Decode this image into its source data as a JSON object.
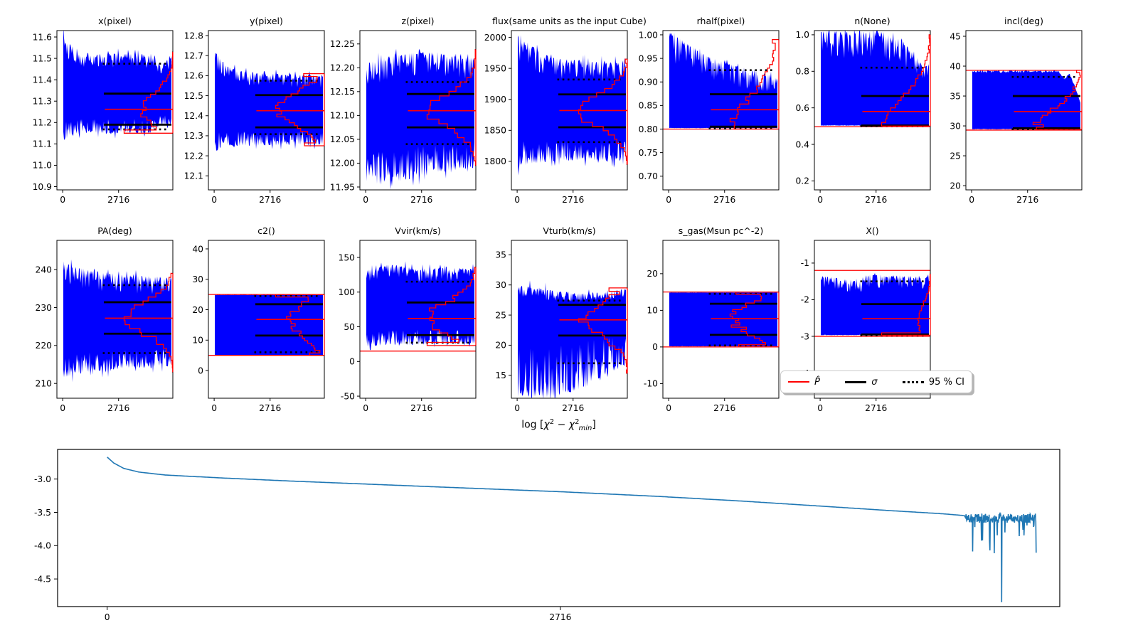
{
  "figure": {
    "bg": "#ffffff",
    "trace_color": "#0000ff",
    "hist_color": "#ff0000",
    "stat_color": "#000000",
    "curve_color": "#1f77b4",
    "axis_color": "#000000"
  },
  "legend": {
    "items": [
      {
        "style": "solid-red",
        "label": "P̂",
        "italic": true
      },
      {
        "style": "solid-black",
        "label": "σ",
        "italic": true
      },
      {
        "style": "dotted-black",
        "label": "95 % CI",
        "italic": false
      }
    ]
  },
  "chart_data": {
    "type": "line",
    "description": "MCMC parameter trace plots (blue chain envelope, red posterior histogram, red median and parameter-bound lines, black sigma lines, dotted 95% CI) plus chi-squared convergence curve",
    "trace_xticks": [
      0,
      2716
    ],
    "panels": [
      {
        "id": "x-pixel",
        "title": "x(pixel)",
        "row": 0,
        "col": 0,
        "ylim": [
          10.885,
          11.63
        ],
        "yticks": [
          10.9,
          11.0,
          11.1,
          11.2,
          11.3,
          11.4,
          11.5,
          11.6
        ],
        "ydec": 1,
        "median": 11.262,
        "sigma": [
          11.19,
          11.335
        ],
        "ci95": [
          11.168,
          11.475
        ],
        "bounds": [],
        "env": [
          [
            0,
            11.11,
            11.625
          ],
          [
            0.05,
            11.13,
            11.57
          ],
          [
            0.2,
            11.15,
            11.525
          ],
          [
            0.84,
            11.15,
            11.52
          ],
          [
            0.9,
            11.2,
            11.46
          ],
          [
            1,
            11.16,
            11.52
          ]
        ],
        "jag": [
          0.18,
          0.18
        ],
        "hist": {
          "dist": "normal",
          "mu": 11.26,
          "sd": 0.08,
          "clip": [
            11.15,
            11.53
          ]
        }
      },
      {
        "id": "y-pixel",
        "title": "y(pixel)",
        "row": 0,
        "col": 1,
        "ylim": [
          12.03,
          12.825
        ],
        "yticks": [
          12.1,
          12.2,
          12.3,
          12.4,
          12.5,
          12.6,
          12.7,
          12.8
        ],
        "ydec": 1,
        "median": 12.425,
        "sigma": [
          12.342,
          12.503
        ],
        "ci95": [
          12.308,
          12.575
        ],
        "bounds": [],
        "env": [
          [
            0,
            12.21,
            12.745
          ],
          [
            0.08,
            12.25,
            12.655
          ],
          [
            0.3,
            12.25,
            12.615
          ],
          [
            1,
            12.255,
            12.6
          ]
        ],
        "jag": [
          0.2,
          0.18
        ],
        "hist": {
          "dist": "normal",
          "mu": 12.43,
          "sd": 0.085,
          "clip": [
            12.25,
            12.61
          ]
        }
      },
      {
        "id": "z-pixel",
        "title": "z(pixel)",
        "row": 0,
        "col": 2,
        "ylim": [
          11.944,
          12.278
        ],
        "yticks": [
          11.95,
          12.0,
          12.05,
          12.1,
          12.15,
          12.2,
          12.25
        ],
        "ydec": 2,
        "median": 12.11,
        "sigma": [
          12.075,
          12.145
        ],
        "ci95": [
          12.04,
          12.17
        ],
        "bounds": [],
        "env": [
          [
            0,
            11.97,
            12.21
          ],
          [
            0.3,
            11.96,
            12.23
          ],
          [
            0.6,
            11.98,
            12.235
          ],
          [
            1,
            11.99,
            12.22
          ]
        ],
        "jag": [
          0.25,
          0.2
        ],
        "hist": {
          "dist": "normal",
          "mu": 12.11,
          "sd": 0.036,
          "clip": [
            11.95,
            12.24
          ]
        }
      },
      {
        "id": "flux",
        "title": "flux(same units as the input Cube)",
        "row": 0,
        "col": 3,
        "ylim": [
          1754,
          2011
        ],
        "yticks": [
          1800,
          1850,
          1900,
          1950,
          2000
        ],
        "ydec": 0,
        "median": 1882,
        "sigma": [
          1855,
          1908
        ],
        "ci95": [
          1831,
          1932
        ],
        "bounds": [],
        "env": [
          [
            0,
            1788,
            2004
          ],
          [
            0.1,
            1795,
            1990
          ],
          [
            0.3,
            1800,
            1968
          ],
          [
            0.6,
            1802,
            1962
          ],
          [
            1,
            1800,
            1958
          ]
        ],
        "jag": [
          0.2,
          0.2
        ],
        "hist": {
          "dist": "normal",
          "mu": 1882,
          "sd": 27,
          "clip": [
            1795,
            1965
          ]
        }
      },
      {
        "id": "rhalf-pixel",
        "title": "rhalf(pixel)",
        "row": 0,
        "col": 4,
        "ylim": [
          0.671,
          1.009
        ],
        "yticks": [
          0.7,
          0.75,
          0.8,
          0.85,
          0.9,
          0.95,
          1.0
        ],
        "ydec": 2,
        "median": 0.841,
        "sigma": [
          0.805,
          0.874
        ],
        "ci95": [
          0.801,
          0.925
        ],
        "bounds": [
          0.8
        ],
        "env": [
          [
            0,
            0.802,
            1.008
          ],
          [
            0.15,
            0.802,
            0.985
          ],
          [
            0.35,
            0.802,
            0.955
          ],
          [
            0.6,
            0.802,
            0.935
          ],
          [
            0.8,
            0.802,
            0.925
          ],
          [
            1,
            0.802,
            0.91
          ]
        ],
        "jag": [
          0.004,
          0.35
        ],
        "hist": {
          "dist": "halfnormal",
          "mu": 0.8,
          "sd": 0.075,
          "clip": [
            0.8,
            0.99
          ]
        }
      },
      {
        "id": "n-none",
        "title": "n(None)",
        "row": 0,
        "col": 5,
        "ylim": [
          0.151,
          1.023
        ],
        "yticks": [
          0.2,
          0.4,
          0.6,
          0.8,
          1.0
        ],
        "ydec": 1,
        "median": 0.58,
        "sigma": [
          0.503,
          0.665
        ],
        "ci95": [
          0.5,
          0.82
        ],
        "bounds": [
          0.497
        ],
        "env": [
          [
            0,
            0.503,
            1.02
          ],
          [
            0.5,
            0.503,
            1.02
          ],
          [
            0.62,
            0.503,
            1.0
          ],
          [
            0.75,
            0.503,
            0.97
          ],
          [
            0.88,
            0.503,
            0.88
          ],
          [
            1,
            0.503,
            0.82
          ]
        ],
        "jag": [
          0.004,
          0.3
        ],
        "hist": {
          "dist": "halfnormal",
          "mu": 0.5,
          "sd": 0.16,
          "clip": [
            0.5,
            1.0
          ]
        }
      },
      {
        "id": "incl-deg",
        "title": "incl(deg)",
        "row": 0,
        "col": 6,
        "ylim": [
          19.3,
          45.95
        ],
        "yticks": [
          20,
          25,
          30,
          35,
          40,
          45
        ],
        "ydec": 0,
        "median": 32.4,
        "sigma": [
          29.6,
          35.0
        ],
        "ci95": [
          29.45,
          38.2
        ],
        "bounds": [
          29.3,
          39.3
        ],
        "env": [
          [
            0,
            29.45,
            39.25
          ],
          [
            0.8,
            29.45,
            39.25
          ],
          [
            0.85,
            29.45,
            38.0
          ],
          [
            0.9,
            29.45,
            38.8
          ],
          [
            0.95,
            29.45,
            36.5
          ],
          [
            1,
            29.45,
            33.8
          ]
        ],
        "jag": [
          0.006,
          0.04
        ],
        "hist": {
          "dist": "halfnormal",
          "mu": 29.4,
          "sd": 3.6,
          "clip": [
            29.4,
            39.3
          ]
        }
      },
      {
        "id": "pa-deg",
        "title": "PA(deg)",
        "row": 1,
        "col": 0,
        "ylim": [
          206.1,
          247.7
        ],
        "yticks": [
          210,
          220,
          230,
          240
        ],
        "ydec": 0,
        "median": 227.2,
        "sigma": [
          223.1,
          231.4
        ],
        "ci95": [
          218.0,
          235.9
        ],
        "bounds": [],
        "env": [
          [
            0,
            211.5,
            241.5
          ],
          [
            0.25,
            213,
            240
          ],
          [
            0.6,
            214,
            238.5
          ],
          [
            1,
            214.5,
            238
          ]
        ],
        "jag": [
          0.2,
          0.2
        ],
        "hist": {
          "dist": "normal",
          "mu": 227.2,
          "sd": 4.2,
          "clip": [
            213,
            239
          ]
        }
      },
      {
        "id": "c2",
        "title": "c2()",
        "row": 1,
        "col": 1,
        "ylim": [
          -9.1,
          42.8
        ],
        "yticks": [
          0,
          10,
          20,
          30,
          40
        ],
        "ydec": 0,
        "median": 16.8,
        "sigma": [
          11.5,
          21.8
        ],
        "ci95": [
          6.0,
          24.5
        ],
        "bounds": [
          5,
          25
        ],
        "env": [
          [
            0,
            5.05,
            24.92
          ],
          [
            1,
            5.05,
            24.92
          ]
        ],
        "jag": [
          0.006,
          0.006
        ],
        "hist": {
          "dist": "normal",
          "mu": 16.5,
          "sd": 5.5,
          "clip": [
            5,
            25
          ]
        }
      },
      {
        "id": "vvir-kms",
        "title": "Vvir(km/s)",
        "row": 1,
        "col": 2,
        "ylim": [
          -53,
          174.6
        ],
        "yticks": [
          -50,
          0,
          50,
          100,
          150
        ],
        "ydec": 0,
        "median": 62,
        "sigma": [
          38,
          85
        ],
        "ci95": [
          27,
          115
        ],
        "bounds": [
          15
        ],
        "env": [
          [
            0,
            23,
            131
          ],
          [
            0.2,
            23,
            140
          ],
          [
            0.5,
            24,
            134
          ],
          [
            0.8,
            25,
            136
          ],
          [
            1,
            26,
            133
          ]
        ],
        "jag": [
          0.2,
          0.18
        ],
        "hist": {
          "dist": "normal",
          "mu": 62,
          "sd": 24,
          "clip": [
            23,
            136
          ]
        }
      },
      {
        "id": "vturb-kms",
        "title": "Vturb(km/s)",
        "row": 1,
        "col": 3,
        "ylim": [
          11.2,
          37.4
        ],
        "yticks": [
          15,
          20,
          25,
          30,
          35
        ],
        "ydec": 0,
        "median": 24.2,
        "sigma": [
          21.6,
          26.7
        ],
        "ci95": [
          17.0,
          27.4
        ],
        "bounds": [],
        "env": [
          [
            0,
            11.4,
            30
          ],
          [
            0.35,
            11.5,
            29
          ],
          [
            0.55,
            12.5,
            28.6
          ],
          [
            0.8,
            15,
            28.8
          ],
          [
            1,
            16.5,
            29.3
          ]
        ],
        "jag": [
          0.5,
          0.1
        ],
        "hist": {
          "dist": "normal",
          "mu": 24.2,
          "sd": 2.7,
          "clip": [
            11.5,
            29.5
          ]
        }
      },
      {
        "id": "s-gas",
        "title": "s_gas(Msun pc^-2)",
        "row": 1,
        "col": 4,
        "ylim": [
          -14,
          29.1
        ],
        "yticks": [
          -10,
          0,
          10,
          20
        ],
        "ydec": 0,
        "median": 7.7,
        "sigma": [
          3.3,
          11.8
        ],
        "ci95": [
          0.4,
          14.5
        ],
        "bounds": [
          0,
          15
        ],
        "env": [
          [
            0,
            0.15,
            14.9
          ],
          [
            1,
            0.15,
            14.9
          ]
        ],
        "jag": [
          0.006,
          0.006
        ],
        "hist": {
          "dist": "normal",
          "mu": 7.7,
          "sd": 4.3,
          "clip": [
            0,
            15
          ]
        }
      },
      {
        "id": "x-param",
        "title": "X()",
        "row": 1,
        "col": 5,
        "ylim": [
          -4.69,
          -0.38
        ],
        "yticks": [
          -1,
          -2,
          -3,
          -4
        ],
        "ydec": 0,
        "median": -2.52,
        "sigma": [
          -2.95,
          -2.12
        ],
        "ci95": [
          -2.97,
          -1.5
        ],
        "bounds": [
          -1.2,
          -3.0
        ],
        "env": [
          [
            0,
            -2.97,
            -1.33
          ],
          [
            0.35,
            -2.97,
            -1.5
          ],
          [
            0.45,
            -2.97,
            -1.32
          ],
          [
            1,
            -2.97,
            -1.35
          ]
        ],
        "jag": [
          0.01,
          0.22
        ],
        "hist": {
          "dist": "normal",
          "mu": -2.6,
          "sd": 0.45,
          "clip": [
            -2.97,
            -1.3
          ]
        }
      }
    ],
    "chi2": {
      "title_parts": [
        {
          "t": "log [",
          "i": false,
          "s": "n"
        },
        {
          "t": "χ",
          "i": true,
          "s": "n"
        },
        {
          "t": "2",
          "i": false,
          "s": "sup"
        },
        {
          "t": " − ",
          "i": false,
          "s": "n"
        },
        {
          "t": "χ",
          "i": true,
          "s": "n"
        },
        {
          "t": "2",
          "i": false,
          "s": "sup"
        },
        {
          "t": "min",
          "i": true,
          "s": "sub"
        },
        {
          "t": "]",
          "i": false,
          "s": "n"
        }
      ],
      "ylim": [
        -4.915,
        -2.555
      ],
      "yticks": [
        -3.0,
        -3.5,
        -4.0,
        -4.5
      ],
      "ydec": 1,
      "xlim": [
        -297,
        5709
      ],
      "xticks": [
        0,
        2716
      ],
      "anchors": [
        [
          0,
          -2.67
        ],
        [
          40,
          -2.76
        ],
        [
          100,
          -2.84
        ],
        [
          190,
          -2.895
        ],
        [
          350,
          -2.94
        ],
        [
          700,
          -2.985
        ],
        [
          1100,
          -3.03
        ],
        [
          1600,
          -3.08
        ],
        [
          2100,
          -3.13
        ],
        [
          2716,
          -3.19
        ],
        [
          3300,
          -3.26
        ],
        [
          3800,
          -3.33
        ],
        [
          4300,
          -3.41
        ],
        [
          4700,
          -3.475
        ],
        [
          5000,
          -3.52
        ],
        [
          5145,
          -3.55
        ]
      ],
      "noise": {
        "start": 5145,
        "end": 5569,
        "base": -3.6,
        "dip_p": 0.1,
        "dip_amp": 0.55,
        "spike_x": 5361,
        "spike_y": -4.85
      }
    }
  }
}
